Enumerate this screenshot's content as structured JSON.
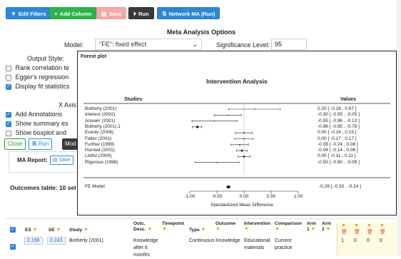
{
  "toolbar": {
    "edit_filters": "Edit Filters",
    "add_column": "Add Column",
    "save": "Save",
    "run": "Run",
    "network_ma": "Network MA (Run)"
  },
  "options": {
    "title": "Meta Analysis Options",
    "model_label": "Model:",
    "model_value": "\"FE\": fixed effect",
    "sig_label": "Significance Level:",
    "sig_value": "95",
    "output_style_label": "Output Style:",
    "checks": [
      {
        "label": "Rank correlation te",
        "checked": false
      },
      {
        "label": "Egger's regression",
        "checked": false
      },
      {
        "label": "Display fit statistics",
        "checked": true
      }
    ],
    "x_axis_label": "X Axis T",
    "checks2": [
      {
        "label": "Add Annotations",
        "checked": true
      },
      {
        "label": "Show summary es",
        "checked": true
      },
      {
        "label": "Show boxplot and",
        "checked": false
      }
    ],
    "close": "Close",
    "run": "Run",
    "mode": "Mod"
  },
  "ma_report": {
    "label": "MA Report:",
    "save": "Save"
  },
  "outcomes_title": "Outcomes table: 10 sel",
  "table": {
    "headers": [
      "ES",
      "SE",
      "Study",
      "Outc. Desc.",
      "Timepoint",
      "Type",
      "Outcome",
      "Intervention",
      "Comparison",
      "Arm 1",
      "Arm 2"
    ],
    "row": {
      "es": "0.198",
      "se": "0.243",
      "study": "Botherly (2001)",
      "outc_desc": "Knowledge after 6 months",
      "type": "Continuous",
      "outcome": "Knowledge",
      "intervention": "Educational materials",
      "comparison": "Current practice",
      "arm1": "1",
      "arm2": "0",
      "extra1": "0",
      "extra2": "0"
    }
  },
  "popup": {
    "title": "Forest plot",
    "plot_title": "Intervention Analysis",
    "studies_header": "Studies",
    "values_header": "Values",
    "model_label": "FE Model",
    "model_value": "-0.29 [ -0.33 , -0.24 ]",
    "xlabel": "Standardized Mean Difference"
  },
  "chart_data": {
    "type": "forest",
    "title": "Intervention Analysis",
    "xlabel": "Standardized Mean Difference",
    "xlim": [
      -1.0,
      1.0
    ],
    "xticks": [
      "-1.00",
      "-0.50",
      "0.00",
      "0.50",
      "1.00"
    ],
    "studies": [
      {
        "name": "Botherly (2001)",
        "es": 0.2,
        "lo": -0.28,
        "hi": 0.67,
        "text": "0.20 [ -0.28 ,  0.67 ]"
      },
      {
        "name": "Interest (2002)",
        "es": -0.3,
        "lo": -0.55,
        "hi": -0.05,
        "text": "-0.30 [ -0.55 , -0.05 ]"
      },
      {
        "name": "Answer (2001)",
        "es": -0.55,
        "lo": -0.96,
        "hi": -0.13,
        "text": "-0.55 [ -0.96 , -0.13 ]"
      },
      {
        "name": "Botherly (2001).1",
        "es": -0.86,
        "lo": -0.95,
        "hi": -0.78,
        "text": "-0.86 [ -0.95 , -0.78 ]"
      },
      {
        "name": "Evenly (2006)",
        "es": 0.0,
        "lo": -0.16,
        "hi": 0.15,
        "text": "0.00 [ -0.16 ,  0.15 ]"
      },
      {
        "name": "Falter (2001)",
        "es": 0.0,
        "lo": -0.17,
        "hi": 0.17,
        "text": "0.00 [ -0.17 ,  0.17 ]"
      },
      {
        "name": "Further (1999)",
        "es": -0.08,
        "lo": -0.24,
        "hi": 0.08,
        "text": "-0.08 [ -0.24 ,  0.08 ]"
      },
      {
        "name": "Hurried (2001)",
        "es": -0.04,
        "lo": -0.14,
        "hi": 0.06,
        "text": "-0.04 [ -0.14 ,  0.06 ]"
      },
      {
        "name": "Listful (2000)",
        "es": 0.0,
        "lo": -0.11,
        "hi": 0.11,
        "text": "0.00 [ -0.11 ,  0.11 ]"
      },
      {
        "name": "Rigorous (1996)",
        "es": -0.5,
        "lo": -0.9,
        "hi": -0.09,
        "text": "-0.50 [ -0.90 , -0.09 ]"
      }
    ],
    "summary": {
      "name": "FE Model",
      "es": -0.29,
      "lo": -0.33,
      "hi": -0.24
    }
  },
  "colors": {
    "primary": "#2f86d6",
    "green": "#2eb24a",
    "pink": "#f4a9a8",
    "dark": "#3a3a3a"
  }
}
